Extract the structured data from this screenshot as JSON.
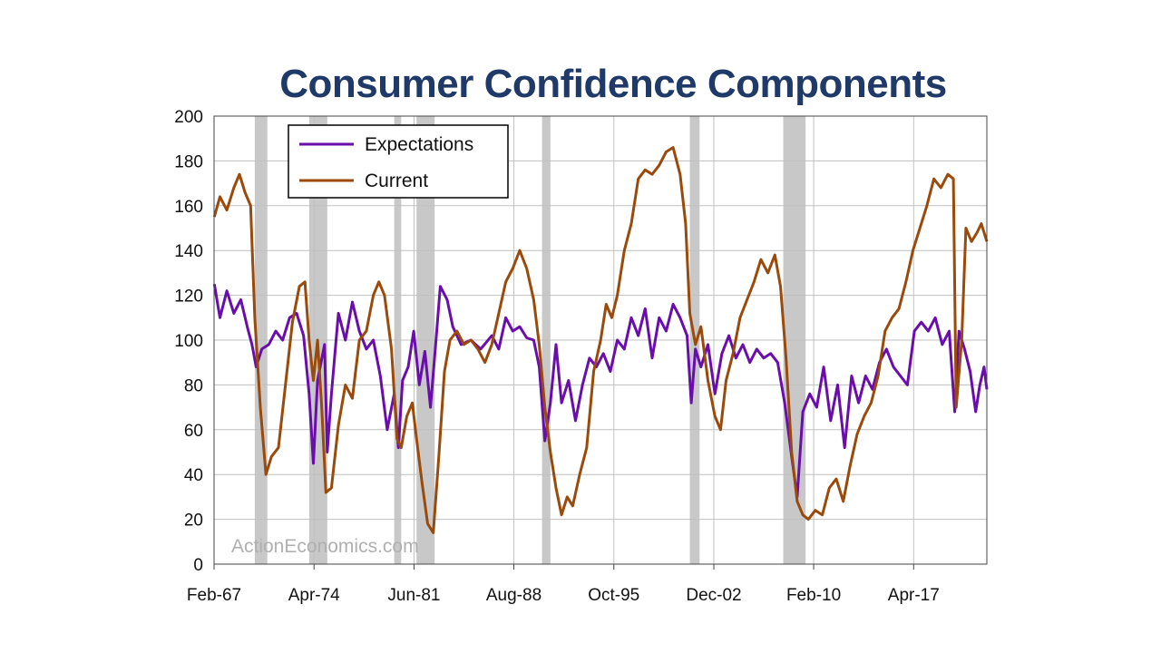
{
  "chart_data": {
    "type": "line",
    "title": "Consumer Confidence Components",
    "watermark": "ActionEconomics.com",
    "xlabel": "",
    "ylabel": "",
    "ylim": [
      0,
      200
    ],
    "yticks": [
      0,
      20,
      40,
      60,
      80,
      100,
      120,
      140,
      160,
      180,
      200
    ],
    "xlim": [
      1967.08,
      2022.5
    ],
    "xticks": [
      {
        "label": "Feb-67",
        "x": 1967.08
      },
      {
        "label": "Apr-74",
        "x": 1974.25
      },
      {
        "label": "Jun-81",
        "x": 1981.42
      },
      {
        "label": "Aug-88",
        "x": 1988.58
      },
      {
        "label": "Oct-95",
        "x": 1995.75
      },
      {
        "label": "Dec-02",
        "x": 2002.92
      },
      {
        "label": "Feb-10",
        "x": 2010.08
      },
      {
        "label": "Apr-17",
        "x": 2017.25
      }
    ],
    "grid": true,
    "legend_position": "top-left",
    "recessions": [
      [
        1970.0,
        1970.9
      ],
      [
        1973.9,
        1975.2
      ],
      [
        1980.0,
        1980.5
      ],
      [
        1981.6,
        1982.9
      ],
      [
        1990.6,
        1991.2
      ],
      [
        2001.2,
        2001.9
      ],
      [
        2007.9,
        2009.5
      ]
    ],
    "recession_color": "#c8c8c8",
    "series": [
      {
        "name": "Expectations",
        "color": "#6a0dad",
        "points": [
          [
            1967.1,
            125
          ],
          [
            1967.5,
            110
          ],
          [
            1968.0,
            122
          ],
          [
            1968.5,
            112
          ],
          [
            1969.0,
            118
          ],
          [
            1969.5,
            105
          ],
          [
            1969.8,
            98
          ],
          [
            1970.1,
            88
          ],
          [
            1970.5,
            96
          ],
          [
            1971.0,
            98
          ],
          [
            1971.5,
            104
          ],
          [
            1972.0,
            100
          ],
          [
            1972.5,
            110
          ],
          [
            1973.0,
            112
          ],
          [
            1973.5,
            102
          ],
          [
            1973.9,
            76
          ],
          [
            1974.2,
            45
          ],
          [
            1974.5,
            82
          ],
          [
            1975.0,
            98
          ],
          [
            1975.2,
            50
          ],
          [
            1975.5,
            76
          ],
          [
            1976.0,
            112
          ],
          [
            1976.5,
            100
          ],
          [
            1977.0,
            117
          ],
          [
            1977.5,
            104
          ],
          [
            1978.0,
            96
          ],
          [
            1978.5,
            100
          ],
          [
            1979.0,
            84
          ],
          [
            1979.5,
            60
          ],
          [
            1980.0,
            76
          ],
          [
            1980.3,
            52
          ],
          [
            1980.6,
            82
          ],
          [
            1981.0,
            88
          ],
          [
            1981.4,
            104
          ],
          [
            1981.8,
            80
          ],
          [
            1982.2,
            95
          ],
          [
            1982.6,
            70
          ],
          [
            1983.0,
            100
          ],
          [
            1983.3,
            124
          ],
          [
            1983.8,
            118
          ],
          [
            1984.2,
            106
          ],
          [
            1984.8,
            98
          ],
          [
            1985.5,
            100
          ],
          [
            1986.2,
            96
          ],
          [
            1987.0,
            102
          ],
          [
            1987.5,
            96
          ],
          [
            1988.0,
            110
          ],
          [
            1988.5,
            104
          ],
          [
            1989.0,
            106
          ],
          [
            1989.5,
            101
          ],
          [
            1990.0,
            100
          ],
          [
            1990.4,
            88
          ],
          [
            1990.8,
            55
          ],
          [
            1991.2,
            72
          ],
          [
            1991.6,
            98
          ],
          [
            1992.0,
            72
          ],
          [
            1992.5,
            82
          ],
          [
            1993.0,
            64
          ],
          [
            1993.5,
            80
          ],
          [
            1994.0,
            92
          ],
          [
            1994.5,
            88
          ],
          [
            1995.0,
            94
          ],
          [
            1995.5,
            86
          ],
          [
            1996.0,
            100
          ],
          [
            1996.5,
            96
          ],
          [
            1997.0,
            110
          ],
          [
            1997.5,
            102
          ],
          [
            1998.0,
            114
          ],
          [
            1998.5,
            92
          ],
          [
            1999.0,
            110
          ],
          [
            1999.5,
            104
          ],
          [
            2000.0,
            116
          ],
          [
            2000.5,
            110
          ],
          [
            2001.0,
            102
          ],
          [
            2001.3,
            72
          ],
          [
            2001.6,
            96
          ],
          [
            2002.0,
            88
          ],
          [
            2002.5,
            98
          ],
          [
            2003.0,
            76
          ],
          [
            2003.5,
            94
          ],
          [
            2004.0,
            102
          ],
          [
            2004.5,
            92
          ],
          [
            2005.0,
            98
          ],
          [
            2005.5,
            90
          ],
          [
            2006.0,
            96
          ],
          [
            2006.5,
            92
          ],
          [
            2007.0,
            94
          ],
          [
            2007.5,
            90
          ],
          [
            2008.0,
            72
          ],
          [
            2008.5,
            48
          ],
          [
            2008.9,
            30
          ],
          [
            2009.3,
            68
          ],
          [
            2009.8,
            76
          ],
          [
            2010.3,
            70
          ],
          [
            2010.8,
            88
          ],
          [
            2011.3,
            64
          ],
          [
            2011.8,
            80
          ],
          [
            2012.3,
            52
          ],
          [
            2012.8,
            84
          ],
          [
            2013.3,
            72
          ],
          [
            2013.8,
            84
          ],
          [
            2014.3,
            78
          ],
          [
            2014.8,
            90
          ],
          [
            2015.3,
            96
          ],
          [
            2015.8,
            88
          ],
          [
            2016.3,
            84
          ],
          [
            2016.8,
            80
          ],
          [
            2017.3,
            104
          ],
          [
            2017.8,
            108
          ],
          [
            2018.3,
            104
          ],
          [
            2018.8,
            110
          ],
          [
            2019.3,
            98
          ],
          [
            2019.8,
            104
          ],
          [
            2020.2,
            68
          ],
          [
            2020.5,
            104
          ],
          [
            2020.9,
            96
          ],
          [
            2021.3,
            86
          ],
          [
            2021.7,
            68
          ],
          [
            2022.0,
            80
          ],
          [
            2022.3,
            88
          ],
          [
            2022.5,
            78
          ]
        ]
      },
      {
        "name": "Current",
        "color": "#9a4a0b",
        "points": [
          [
            1967.1,
            155
          ],
          [
            1967.5,
            164
          ],
          [
            1968.0,
            158
          ],
          [
            1968.5,
            168
          ],
          [
            1968.9,
            174
          ],
          [
            1969.3,
            166
          ],
          [
            1969.7,
            160
          ],
          [
            1970.0,
            110
          ],
          [
            1970.4,
            70
          ],
          [
            1970.8,
            40
          ],
          [
            1971.2,
            48
          ],
          [
            1971.7,
            52
          ],
          [
            1972.2,
            80
          ],
          [
            1972.7,
            108
          ],
          [
            1973.2,
            124
          ],
          [
            1973.6,
            126
          ],
          [
            1973.9,
            100
          ],
          [
            1974.2,
            82
          ],
          [
            1974.5,
            100
          ],
          [
            1974.8,
            70
          ],
          [
            1975.1,
            32
          ],
          [
            1975.5,
            34
          ],
          [
            1976.0,
            62
          ],
          [
            1976.5,
            80
          ],
          [
            1977.0,
            74
          ],
          [
            1977.5,
            100
          ],
          [
            1978.0,
            104
          ],
          [
            1978.5,
            120
          ],
          [
            1978.9,
            126
          ],
          [
            1979.3,
            120
          ],
          [
            1979.8,
            96
          ],
          [
            1980.2,
            56
          ],
          [
            1980.5,
            52
          ],
          [
            1980.9,
            66
          ],
          [
            1981.3,
            72
          ],
          [
            1981.6,
            56
          ],
          [
            1982.0,
            36
          ],
          [
            1982.4,
            18
          ],
          [
            1982.8,
            14
          ],
          [
            1983.2,
            48
          ],
          [
            1983.6,
            86
          ],
          [
            1984.0,
            100
          ],
          [
            1984.5,
            104
          ],
          [
            1985.0,
            98
          ],
          [
            1985.5,
            100
          ],
          [
            1986.0,
            96
          ],
          [
            1986.5,
            90
          ],
          [
            1987.0,
            98
          ],
          [
            1987.5,
            112
          ],
          [
            1988.0,
            126
          ],
          [
            1988.5,
            132
          ],
          [
            1989.0,
            140
          ],
          [
            1989.5,
            132
          ],
          [
            1990.0,
            118
          ],
          [
            1990.4,
            98
          ],
          [
            1990.8,
            70
          ],
          [
            1991.2,
            50
          ],
          [
            1991.6,
            34
          ],
          [
            1992.0,
            22
          ],
          [
            1992.4,
            30
          ],
          [
            1992.8,
            26
          ],
          [
            1993.3,
            40
          ],
          [
            1993.8,
            52
          ],
          [
            1994.3,
            86
          ],
          [
            1994.8,
            100
          ],
          [
            1995.2,
            116
          ],
          [
            1995.6,
            110
          ],
          [
            1996.0,
            120
          ],
          [
            1996.5,
            140
          ],
          [
            1997.0,
            152
          ],
          [
            1997.5,
            172
          ],
          [
            1998.0,
            176
          ],
          [
            1998.5,
            174
          ],
          [
            1999.0,
            178
          ],
          [
            1999.5,
            184
          ],
          [
            2000.0,
            186
          ],
          [
            2000.5,
            174
          ],
          [
            2000.9,
            152
          ],
          [
            2001.2,
            112
          ],
          [
            2001.6,
            98
          ],
          [
            2002.0,
            106
          ],
          [
            2002.5,
            82
          ],
          [
            2003.0,
            66
          ],
          [
            2003.4,
            60
          ],
          [
            2003.8,
            82
          ],
          [
            2004.3,
            94
          ],
          [
            2004.8,
            110
          ],
          [
            2005.3,
            118
          ],
          [
            2005.8,
            126
          ],
          [
            2006.3,
            136
          ],
          [
            2006.8,
            130
          ],
          [
            2007.3,
            138
          ],
          [
            2007.7,
            124
          ],
          [
            2008.1,
            92
          ],
          [
            2008.5,
            50
          ],
          [
            2008.9,
            28
          ],
          [
            2009.3,
            22
          ],
          [
            2009.7,
            20
          ],
          [
            2010.2,
            24
          ],
          [
            2010.7,
            22
          ],
          [
            2011.2,
            34
          ],
          [
            2011.7,
            38
          ],
          [
            2012.2,
            28
          ],
          [
            2012.7,
            44
          ],
          [
            2013.2,
            58
          ],
          [
            2013.7,
            66
          ],
          [
            2014.2,
            72
          ],
          [
            2014.7,
            84
          ],
          [
            2015.2,
            104
          ],
          [
            2015.7,
            110
          ],
          [
            2016.2,
            114
          ],
          [
            2016.7,
            126
          ],
          [
            2017.2,
            140
          ],
          [
            2017.7,
            150
          ],
          [
            2018.2,
            160
          ],
          [
            2018.7,
            172
          ],
          [
            2019.2,
            168
          ],
          [
            2019.7,
            174
          ],
          [
            2020.1,
            172
          ],
          [
            2020.3,
            70
          ],
          [
            2020.7,
            100
          ],
          [
            2021.0,
            150
          ],
          [
            2021.4,
            144
          ],
          [
            2021.8,
            148
          ],
          [
            2022.1,
            152
          ],
          [
            2022.5,
            144
          ]
        ]
      }
    ]
  }
}
